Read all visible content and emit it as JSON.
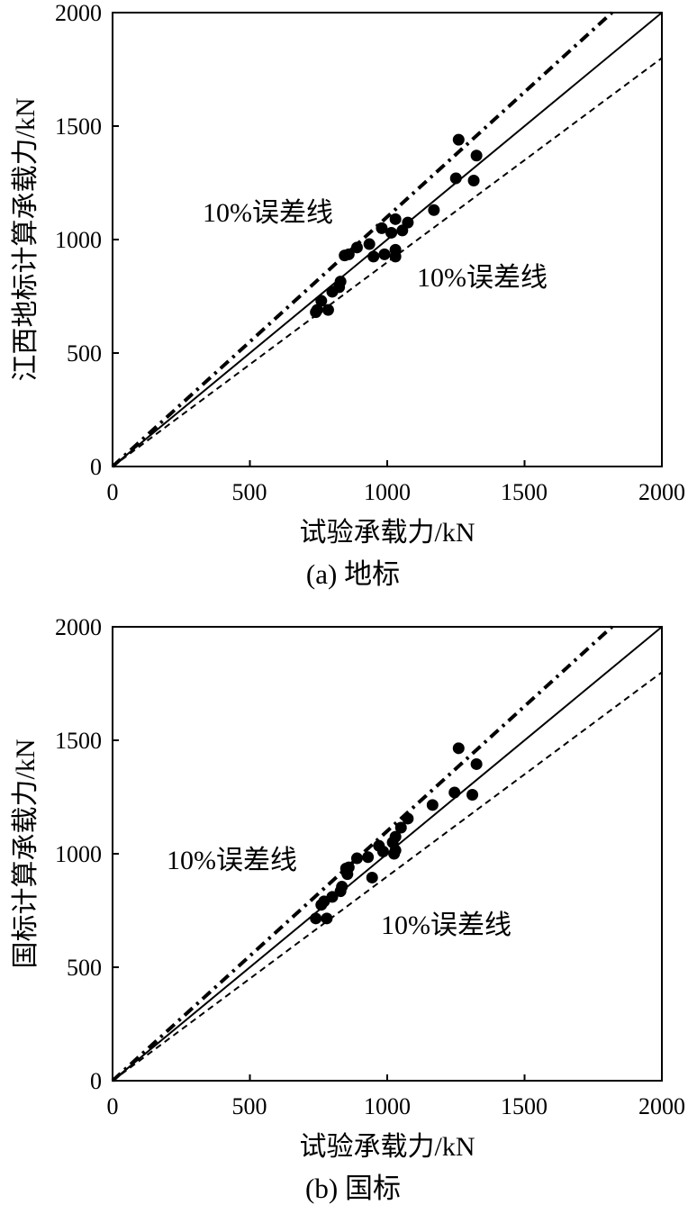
{
  "chart_data": [
    {
      "type": "scatter",
      "caption": "(a) 地标",
      "xlabel": "试验承载力/kN",
      "ylabel": "江西地标计算承载力/kN",
      "xlim": [
        0,
        2000
      ],
      "ylim": [
        0,
        2000
      ],
      "xticks": [
        "0",
        "500",
        "1000",
        "1500",
        "2000"
      ],
      "yticks": [
        "0",
        "500",
        "1000",
        "1500",
        "2000"
      ],
      "annotations": {
        "upper": "10%误差线",
        "lower": "10%误差线"
      },
      "reference_lines": [
        {
          "style": "solid",
          "slope": 1.0
        },
        {
          "style": "dashed-dotted",
          "slope": 1.1
        },
        {
          "style": "dashed",
          "slope": 0.9
        }
      ],
      "series": [
        {
          "points": [
            [
              740,
              680
            ],
            [
              745,
              690
            ],
            [
              760,
              730
            ],
            [
              785,
              690
            ],
            [
              800,
              770
            ],
            [
              825,
              790
            ],
            [
              830,
              815
            ],
            [
              845,
              930
            ],
            [
              860,
              935
            ],
            [
              890,
              965
            ],
            [
              935,
              980
            ],
            [
              950,
              925
            ],
            [
              980,
              1050
            ],
            [
              990,
              935
            ],
            [
              1015,
              1030
            ],
            [
              1030,
              955
            ],
            [
              1030,
              1090
            ],
            [
              1030,
              925
            ],
            [
              1055,
              1040
            ],
            [
              1075,
              1075
            ],
            [
              1170,
              1130
            ],
            [
              1250,
              1270
            ],
            [
              1260,
              1440
            ],
            [
              1315,
              1260
            ],
            [
              1325,
              1370
            ]
          ]
        }
      ]
    },
    {
      "type": "scatter",
      "caption": "(b) 国标",
      "xlabel": "试验承载力/kN",
      "ylabel": "国标计算承载力/kN",
      "xlim": [
        0,
        2000
      ],
      "ylim": [
        0,
        2000
      ],
      "xticks": [
        "0",
        "500",
        "1000",
        "1500",
        "2000"
      ],
      "yticks": [
        "0",
        "500",
        "1000",
        "1500",
        "2000"
      ],
      "annotations": {
        "upper": "10%误差线",
        "lower": "10%误差线"
      },
      "reference_lines": [
        {
          "style": "solid",
          "slope": 1.0
        },
        {
          "style": "dashed-dotted",
          "slope": 1.1
        },
        {
          "style": "dashed",
          "slope": 0.9
        }
      ],
      "series": [
        {
          "points": [
            [
              740,
              715
            ],
            [
              760,
              775
            ],
            [
              770,
              790
            ],
            [
              780,
              715
            ],
            [
              800,
              810
            ],
            [
              830,
              835
            ],
            [
              835,
              855
            ],
            [
              850,
              935
            ],
            [
              855,
              910
            ],
            [
              860,
              940
            ],
            [
              890,
              980
            ],
            [
              930,
              985
            ],
            [
              945,
              895
            ],
            [
              970,
              1035
            ],
            [
              985,
              1010
            ],
            [
              1020,
              1050
            ],
            [
              1025,
              1000
            ],
            [
              1030,
              1015
            ],
            [
              1030,
              1075
            ],
            [
              1050,
              1115
            ],
            [
              1075,
              1155
            ],
            [
              1165,
              1215
            ],
            [
              1245,
              1270
            ],
            [
              1260,
              1465
            ],
            [
              1310,
              1260
            ],
            [
              1325,
              1395
            ]
          ]
        }
      ]
    }
  ]
}
